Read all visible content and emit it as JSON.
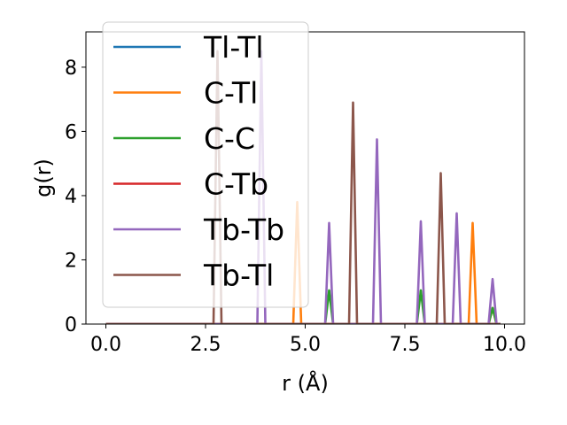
{
  "chart_data": {
    "type": "line",
    "title": "",
    "xlabel": "r (Å)",
    "ylabel": "g(r)",
    "xlim": [
      -0.5,
      10.5
    ],
    "ylim": [
      0,
      9.1
    ],
    "xticks": [
      0.0,
      2.5,
      5.0,
      7.5,
      10.0
    ],
    "xtick_labels": [
      "0.0",
      "2.5",
      "5.0",
      "7.5",
      "10.0"
    ],
    "yticks": [
      0,
      2,
      4,
      6,
      8
    ],
    "ytick_labels": [
      "0",
      "2",
      "4",
      "6",
      "8"
    ],
    "grid": false,
    "legend_position": "top-left",
    "peak_halfwidth": 0.1,
    "series": [
      {
        "name": "Tl-Tl",
        "color": "#1f77b4",
        "peaks": []
      },
      {
        "name": "C-Tl",
        "color": "#ff7f0e",
        "peaks": [
          [
            4.8,
            3.8
          ],
          [
            9.2,
            3.15
          ],
          [
            9.7,
            0.5
          ]
        ]
      },
      {
        "name": "C-C",
        "color": "#2ca02c",
        "peaks": [
          [
            5.6,
            1.05
          ],
          [
            7.9,
            1.05
          ],
          [
            9.7,
            0.5
          ]
        ]
      },
      {
        "name": "C-Tb",
        "color": "#d62728",
        "peaks": []
      },
      {
        "name": "Tb-Tb",
        "color": "#9467bd",
        "peaks": [
          [
            3.9,
            8.5
          ],
          [
            5.6,
            3.15
          ],
          [
            6.8,
            5.75
          ],
          [
            7.9,
            3.2
          ],
          [
            8.8,
            3.45
          ],
          [
            9.7,
            1.4
          ]
        ]
      },
      {
        "name": "Tb-Tl",
        "color": "#8c564b",
        "peaks": [
          [
            2.8,
            8.5
          ],
          [
            6.2,
            6.9
          ],
          [
            8.4,
            4.7
          ]
        ]
      }
    ]
  }
}
